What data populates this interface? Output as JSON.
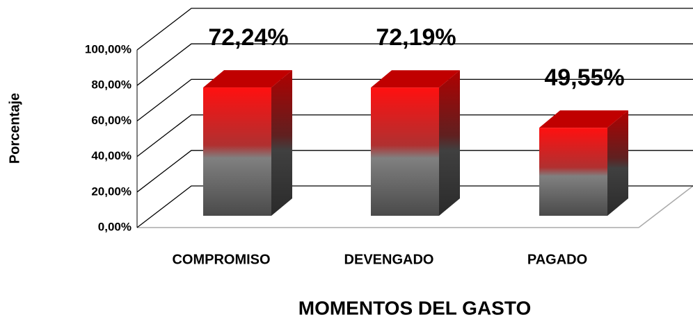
{
  "chart_data": {
    "type": "bar3d",
    "x_label": "MOMENTOS DEL GASTO",
    "y_label": "Porcentaje",
    "categories": [
      "COMPROMISO",
      "DEVENGADO",
      "PAGADO"
    ],
    "values": [
      72.24,
      72.19,
      49.55
    ],
    "value_labels": [
      "72,24%",
      "72,19%",
      "49,55%"
    ],
    "color": "#ff0000",
    "ylim": [
      0,
      100
    ],
    "yticks": [
      {
        "value": 0,
        "label": "0,00%"
      },
      {
        "value": 20,
        "label": "20,00%"
      },
      {
        "value": 40,
        "label": "40,00%"
      },
      {
        "value": 60,
        "label": "60,00%"
      },
      {
        "value": 80,
        "label": "80,00%"
      },
      {
        "value": 100,
        "label": "100,00%"
      }
    ],
    "grid": true
  }
}
